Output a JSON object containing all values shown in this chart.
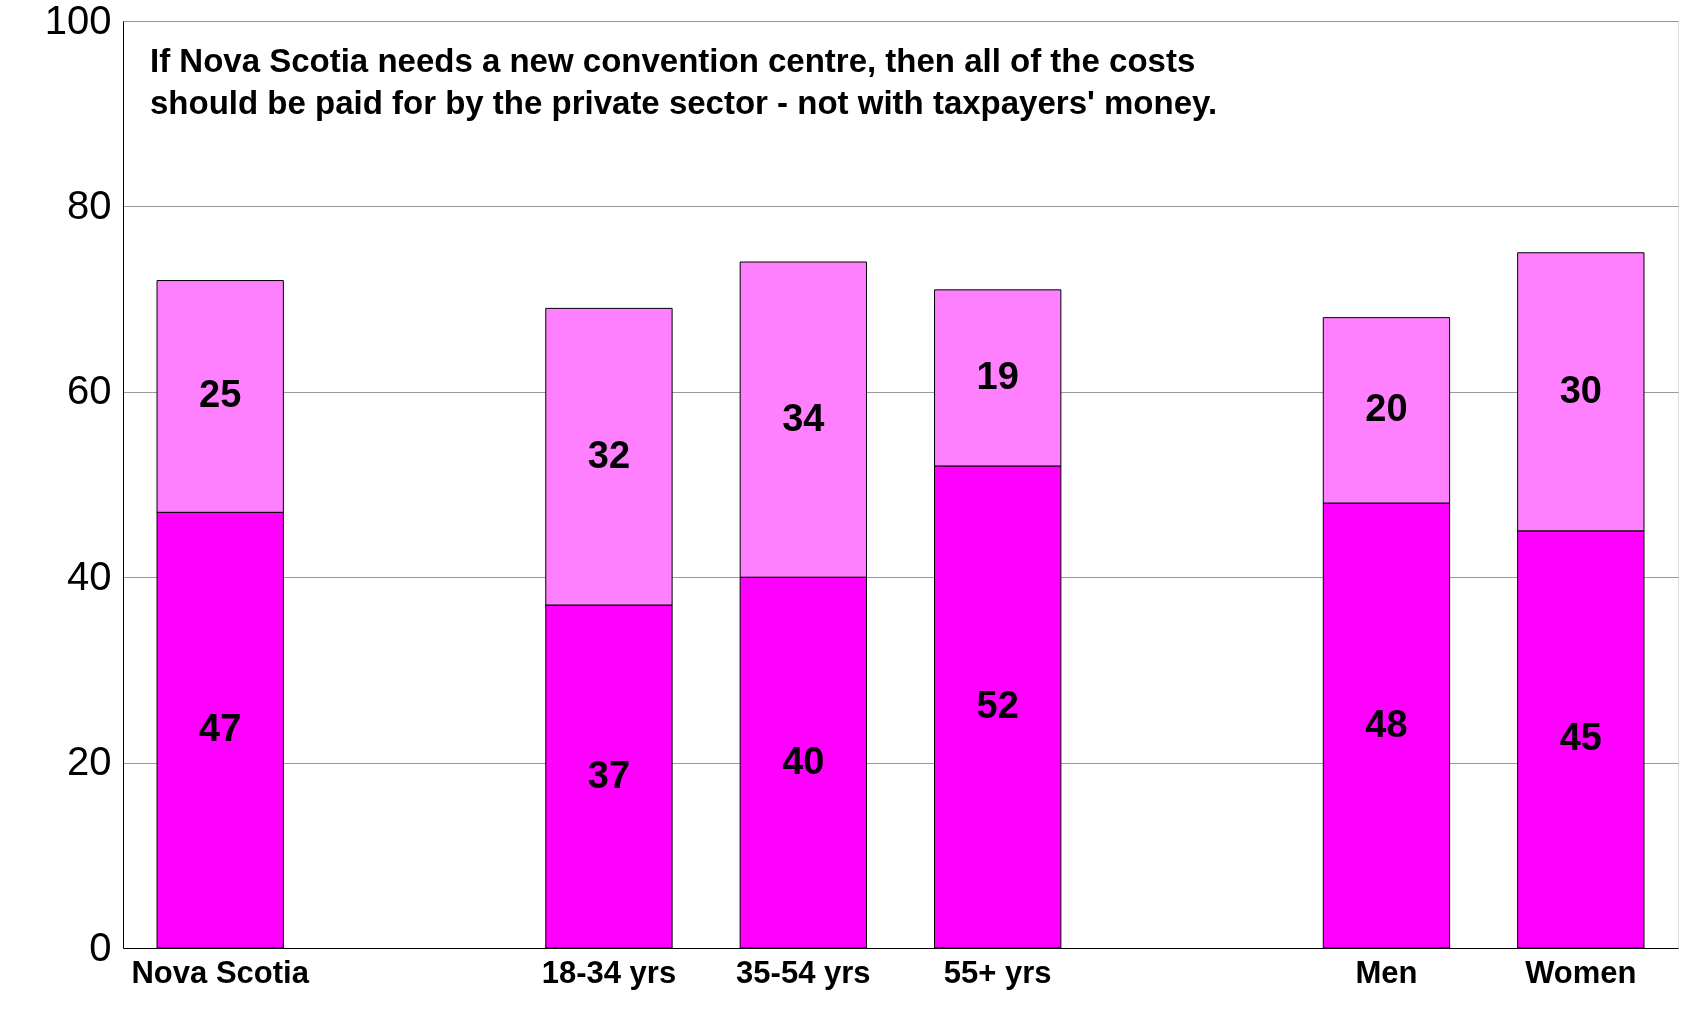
{
  "chart_data": {
    "type": "bar",
    "stacked": true,
    "data_labels": true,
    "annotations": [
      "If Nova Scotia needs a new convention centre, then all of the costs\nshould be paid for by the private sector - not with taxpayers' money."
    ],
    "categories": [
      "Nova Scotia",
      null,
      "18-34 yrs",
      "35-54 yrs",
      "55+ yrs",
      null,
      "Men",
      "Women"
    ],
    "series": [
      {
        "color": "#ff00ff",
        "values": [
          47,
          null,
          37,
          40,
          52,
          null,
          48,
          45
        ]
      },
      {
        "color": "#ff80ff",
        "values": [
          25,
          null,
          32,
          34,
          19,
          null,
          20,
          30
        ]
      }
    ],
    "ylim": [
      0,
      100
    ],
    "yticks": [
      0,
      20,
      40,
      60,
      80,
      100
    ],
    "grid": "y",
    "legend": false
  }
}
